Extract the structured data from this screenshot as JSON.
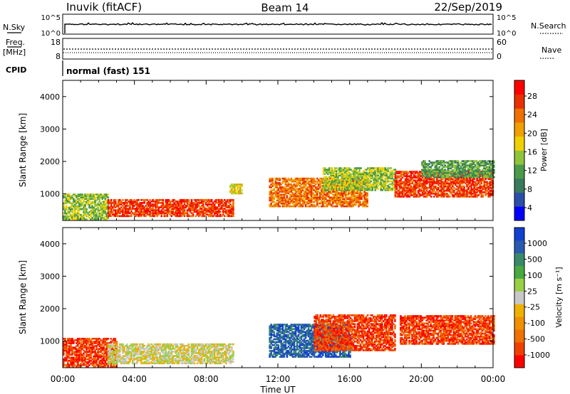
{
  "header": {
    "site": "Inuvik (fitACF)",
    "beam": "Beam 14",
    "date": "22/Sep/2019"
  },
  "top_panels": {
    "nsky_label": "N.Sky",
    "nsky_ticks": [
      "10^5",
      "10^0"
    ],
    "nsearch_label": "N.Search",
    "nsearch_ticks": [
      "10^5",
      "10^0"
    ],
    "freq_label_1": "Freq.",
    "freq_label_2": "[MHz]",
    "freq_ticks": [
      "18",
      "8"
    ],
    "nave_label": "Nave",
    "nave_ticks": [
      "60",
      "0"
    ],
    "cpid_label": "CPID",
    "cpid_value": "normal (fast) 151"
  },
  "colors": {
    "power_scale": [
      "#0000ff",
      "#2b4fa8",
      "#3a7a5c",
      "#4a9a4a",
      "#8fc43a",
      "#f0d000",
      "#f0a000",
      "#f07000",
      "#e83000",
      "#ff0000"
    ],
    "velocity_scale": [
      "#ff0000",
      "#f04000",
      "#f07000",
      "#f09000",
      "#f0b000",
      "#c8c8c8",
      "#9ad046",
      "#4aaa40",
      "#3a8a6a",
      "#2a5ab0",
      "#1040d0"
    ]
  },
  "chart_data": [
    {
      "type": "heatmap",
      "name": "power-panel",
      "xlabel": "Time UT",
      "ylabel": "Slant Range [km]",
      "x_ticks": [
        "00:00",
        "04:00",
        "08:00",
        "12:00",
        "16:00",
        "20:00",
        "00:00"
      ],
      "y_ticks": [
        "1000",
        "2000",
        "3000",
        "4000"
      ],
      "ylim": [
        180,
        4500
      ],
      "colorbar_label": "Power [dB]",
      "colorbar_ticks": [
        "28",
        "24",
        "20",
        "16",
        "12",
        "8",
        "4"
      ],
      "clim": [
        0,
        30
      ],
      "regions": [
        {
          "t0": 0.0,
          "t1": 2.5,
          "r0": 200,
          "r1": 1000,
          "value": 14
        },
        {
          "t0": 2.5,
          "t1": 9.5,
          "r0": 300,
          "r1": 800,
          "value": 26
        },
        {
          "t0": 9.3,
          "t1": 10.0,
          "r0": 1000,
          "r1": 1300,
          "value": 18
        },
        {
          "t0": 11.5,
          "t1": 17.0,
          "r0": 600,
          "r1": 1500,
          "value": 24
        },
        {
          "t0": 14.5,
          "t1": 18.5,
          "r0": 1100,
          "r1": 1800,
          "value": 14
        },
        {
          "t0": 18.5,
          "t1": 24.0,
          "r0": 900,
          "r1": 1700,
          "value": 26
        },
        {
          "t0": 20.0,
          "t1": 24.0,
          "r0": 1500,
          "r1": 2000,
          "value": 10
        }
      ]
    },
    {
      "type": "heatmap",
      "name": "velocity-panel",
      "xlabel": "Time UT",
      "ylabel": "Slant Range [km]",
      "x_ticks": [
        "00:00",
        "04:00",
        "08:00",
        "12:00",
        "16:00",
        "20:00",
        "00:00"
      ],
      "y_ticks": [
        "1000",
        "2000",
        "3000",
        "4000"
      ],
      "ylim": [
        180,
        4500
      ],
      "colorbar_label": "Velocity [m s⁻¹]",
      "colorbar_ticks": [
        "1000",
        "500",
        "100",
        "25",
        "-25",
        "-100",
        "-500",
        "-1000"
      ],
      "clim": [
        -1000,
        1000
      ],
      "regions": [
        {
          "t0": 0.0,
          "t1": 3.0,
          "r0": 200,
          "r1": 1100,
          "value": -150
        },
        {
          "t0": 2.5,
          "t1": 9.5,
          "r0": 300,
          "r1": 900,
          "value": 0
        },
        {
          "t0": 11.5,
          "t1": 16.0,
          "r0": 500,
          "r1": 1500,
          "value": 200
        },
        {
          "t0": 14.0,
          "t1": 18.5,
          "r0": 700,
          "r1": 1800,
          "value": -300
        },
        {
          "t0": 18.8,
          "t1": 24.0,
          "r0": 900,
          "r1": 1800,
          "value": -400
        }
      ]
    }
  ]
}
